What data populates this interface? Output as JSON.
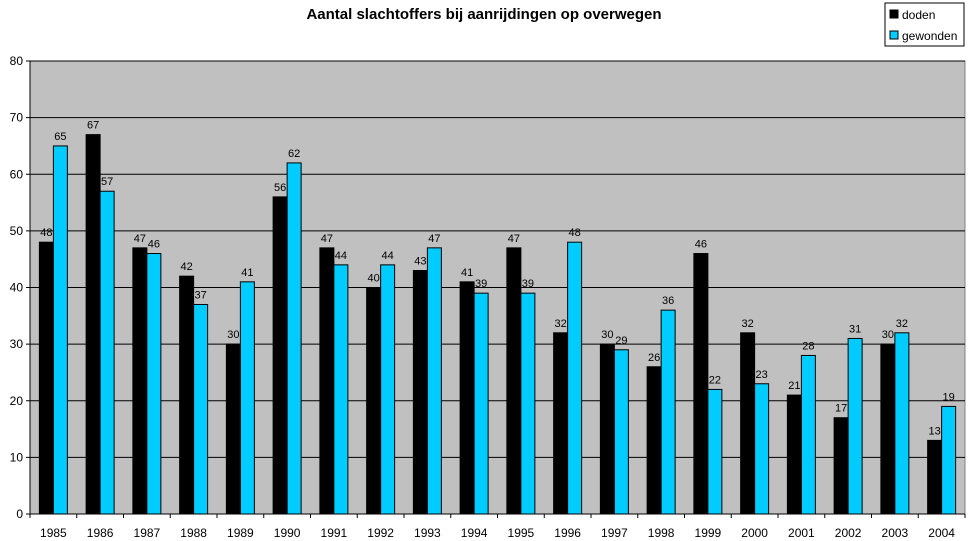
{
  "chart_data": {
    "type": "bar",
    "title": "Aantal slachtoffers bij aanrijdingen op overwegen",
    "categories": [
      "1985",
      "1986",
      "1987",
      "1988",
      "1989",
      "1990",
      "1991",
      "1992",
      "1993",
      "1994",
      "1995",
      "1996",
      "1997",
      "1998",
      "1999",
      "2000",
      "2001",
      "2002",
      "2003",
      "2004"
    ],
    "series": [
      {
        "name": "doden",
        "color": "#000000",
        "values": [
          48,
          67,
          47,
          42,
          30,
          56,
          47,
          40,
          43,
          41,
          47,
          32,
          30,
          26,
          46,
          32,
          21,
          17,
          30,
          13
        ]
      },
      {
        "name": "gewonden",
        "color": "#00ccff",
        "values": [
          65,
          57,
          46,
          37,
          41,
          62,
          44,
          44,
          47,
          39,
          39,
          48,
          29,
          36,
          22,
          23,
          28,
          31,
          32,
          19
        ]
      }
    ],
    "ylim": [
      0,
      80
    ],
    "yticks": [
      0,
      10,
      20,
      30,
      40,
      50,
      60,
      70,
      80
    ],
    "grid": true,
    "legend": "top-right",
    "plot_background": "#c0c0c0"
  }
}
